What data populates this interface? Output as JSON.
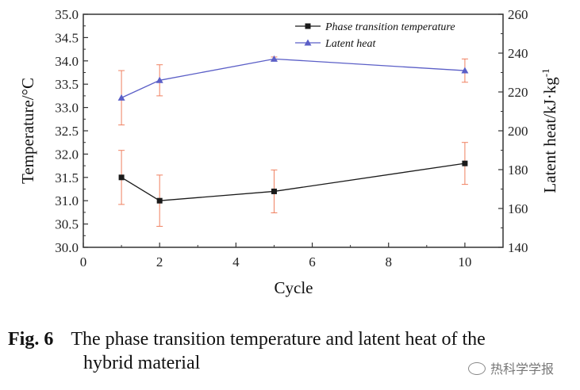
{
  "chart_data": {
    "type": "line",
    "x": [
      1,
      2,
      5,
      10
    ],
    "xlabel": "Cycle",
    "xlim": [
      0,
      11
    ],
    "xticks": [
      0,
      2,
      4,
      6,
      8,
      10
    ],
    "ylabel_left": "Temperature/°C",
    "ylim_left": [
      30.0,
      35.0
    ],
    "yticks_left": [
      "30.0",
      "30.5",
      "31.0",
      "31.5",
      "32.0",
      "32.5",
      "33.0",
      "33.5",
      "34.0",
      "34.5",
      "35.0"
    ],
    "ylabel_right": "Latent heat/kJ·kg",
    "ylabel_right_sup": "-1",
    "ylim_right": [
      140,
      260
    ],
    "yticks_right": [
      "140",
      "160",
      "180",
      "200",
      "220",
      "240",
      "260"
    ],
    "legend_position": "top-right",
    "grid": false,
    "series": [
      {
        "name": "Phase transition temperature",
        "axis": "left",
        "marker": "square",
        "color": "#1a1a1a",
        "values": [
          31.5,
          31.0,
          31.2,
          31.8
        ],
        "errors": [
          0.58,
          0.55,
          0.46,
          0.45
        ]
      },
      {
        "name": "Latent heat",
        "axis": "right",
        "marker": "triangle",
        "color": "#5b5fc7",
        "values": [
          217,
          226,
          237,
          231
        ],
        "errors": [
          14,
          8,
          1,
          6
        ]
      }
    ],
    "error_bar_color": "#f08060"
  },
  "caption": {
    "label": "Fig. 6",
    "line1": "The phase transition temperature and latent heat of the",
    "line2": "hybrid material"
  },
  "watermark": {
    "text": "热科学学报",
    "icon": "wechat-icon"
  }
}
